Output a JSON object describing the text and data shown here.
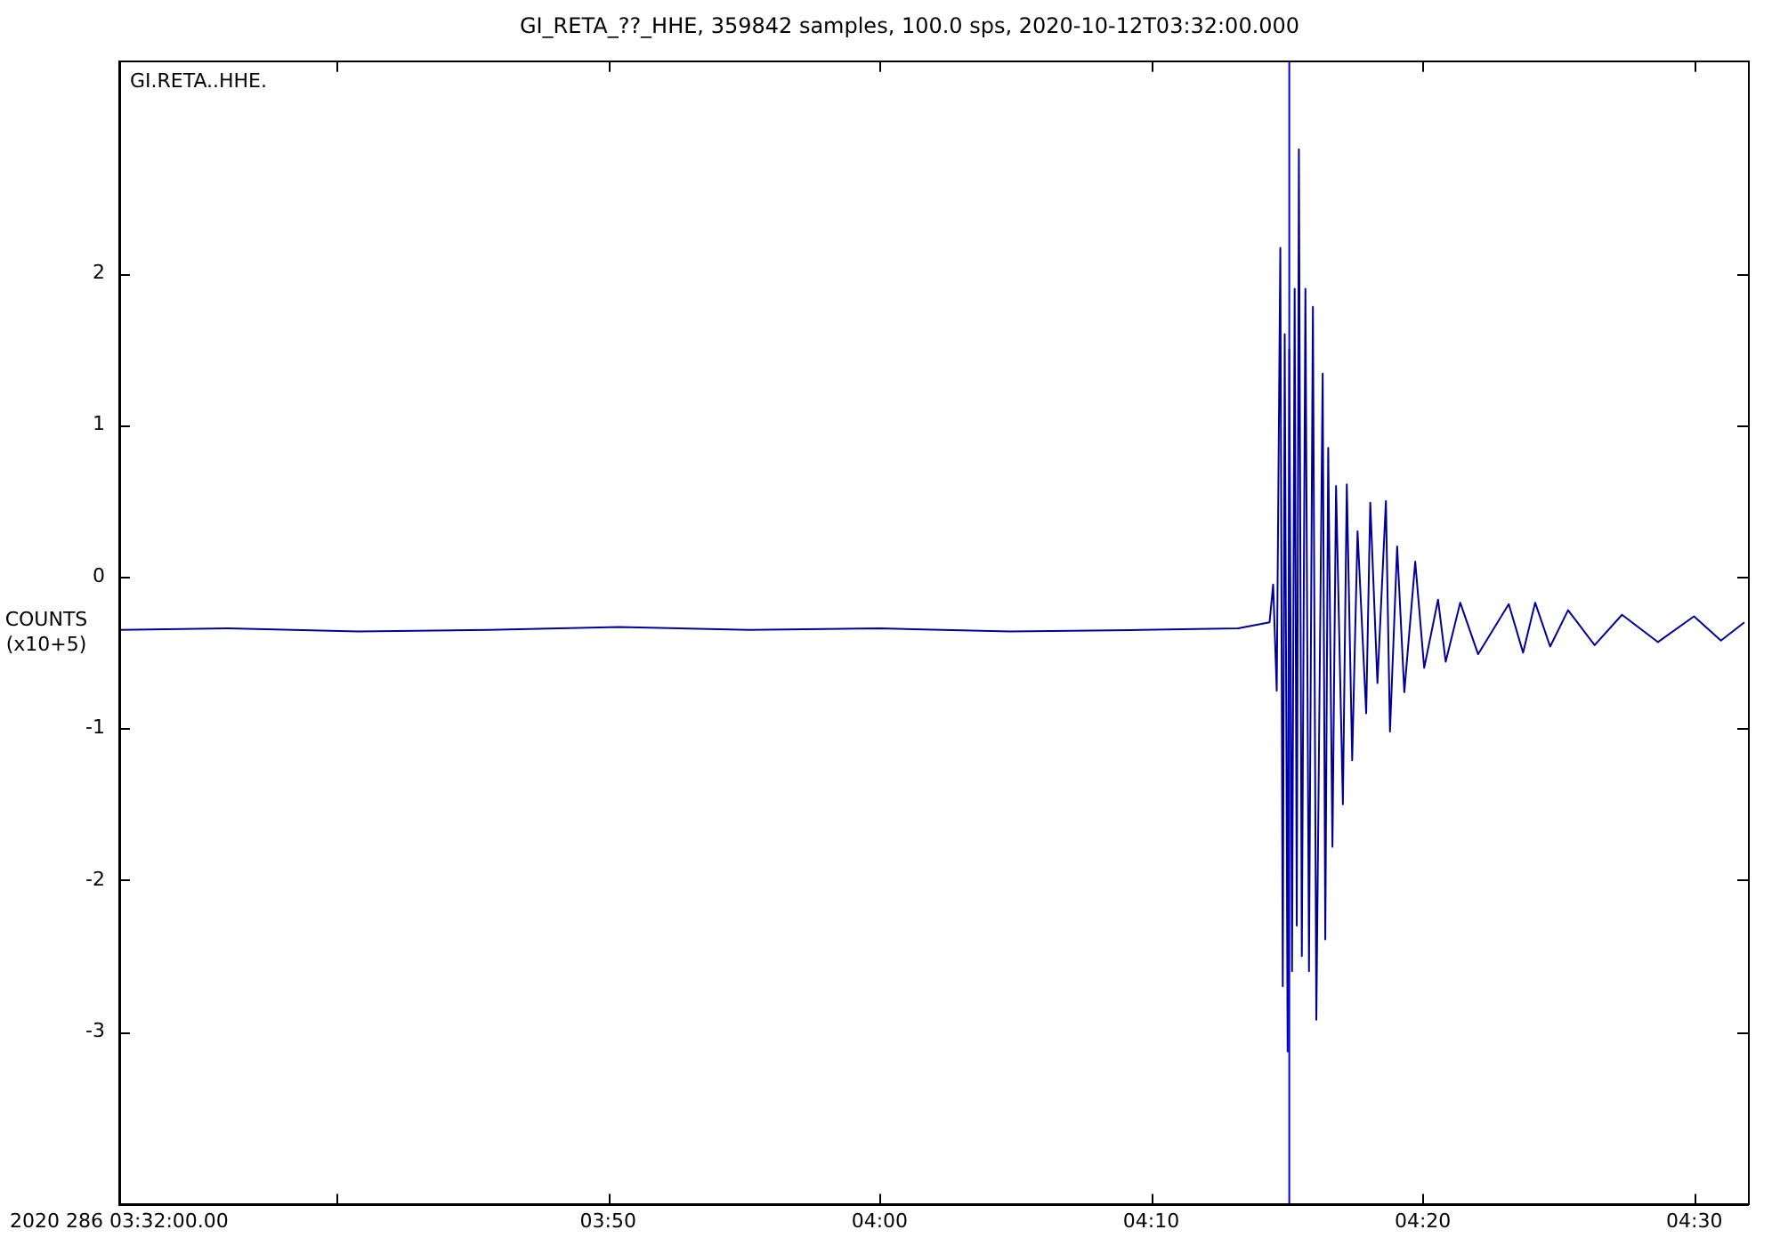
{
  "chart_data": {
    "type": "line",
    "title": "GI_RETA_??_HHE, 359842 samples, 100.0 sps, 2020-10-12T03:32:00.000",
    "ylabel": "COUNTS\n(x10+5)",
    "annotations": [
      "GI.RETA..HHE."
    ],
    "xlim": [
      3.5333,
      4.5329
    ],
    "ylim": [
      -4.14,
      3.4
    ],
    "xticks": [
      {
        "value": 3.5333,
        "label": "2020 286 03:32:00.00"
      },
      {
        "value": 3.6667,
        "label": null
      },
      {
        "value": 3.8333,
        "label": "03:50"
      },
      {
        "value": 4.0,
        "label": "04:00"
      },
      {
        "value": 4.1667,
        "label": "04:10"
      },
      {
        "value": 4.3333,
        "label": "04:20"
      },
      {
        "value": 4.5,
        "label": "04:30"
      }
    ],
    "yticks": [
      -3,
      -2,
      -1,
      0,
      1,
      2
    ],
    "grid": false,
    "legend": false,
    "marker": "none",
    "line_style": "solid",
    "ref_lines": [
      {
        "axis": "x",
        "value": 4.2514,
        "label": null,
        "color": "#0000ee"
      }
    ],
    "series": [
      {
        "color": "#000099",
        "x": [
          3.5333,
          3.6,
          3.68,
          3.76,
          3.84,
          3.92,
          4.0,
          4.08,
          4.16,
          4.22,
          4.2393,
          4.2415,
          4.2437,
          4.2459,
          4.2474,
          4.2486,
          4.2504,
          4.2514,
          4.2531,
          4.2547,
          4.256,
          4.2573,
          4.2591,
          4.2613,
          4.2635,
          4.2659,
          4.268,
          4.2719,
          4.2735,
          4.2753,
          4.2779,
          4.2801,
          4.2843,
          4.2867,
          4.29,
          4.2933,
          4.2986,
          4.3011,
          4.3055,
          4.3107,
          4.3132,
          4.3176,
          4.322,
          4.3287,
          4.3342,
          4.3427,
          4.3474,
          4.3563,
          4.3673,
          4.3861,
          4.3949,
          4.4023,
          4.4115,
          4.4225,
          4.4388,
          4.4556,
          4.4777,
          4.4998,
          4.5163,
          4.5307
        ],
        "values": [
          -0.35,
          -0.34,
          -0.36,
          -0.35,
          -0.33,
          -0.35,
          -0.34,
          -0.36,
          -0.35,
          -0.34,
          -0.3,
          -0.05,
          -0.75,
          2.17,
          -2.7,
          1.6,
          -3.13,
          1.5,
          -2.6,
          1.9,
          -2.3,
          2.82,
          -2.5,
          1.9,
          -2.6,
          1.78,
          -2.92,
          1.34,
          -2.39,
          0.85,
          -1.78,
          0.6,
          -1.5,
          0.61,
          -1.21,
          0.3,
          -0.9,
          0.49,
          -0.7,
          0.5,
          -1.02,
          0.2,
          -0.76,
          0.1,
          -0.6,
          -0.15,
          -0.56,
          -0.17,
          -0.51,
          -0.18,
          -0.5,
          -0.17,
          -0.46,
          -0.22,
          -0.45,
          -0.25,
          -0.43,
          -0.26,
          -0.42,
          -0.3
        ]
      }
    ]
  }
}
